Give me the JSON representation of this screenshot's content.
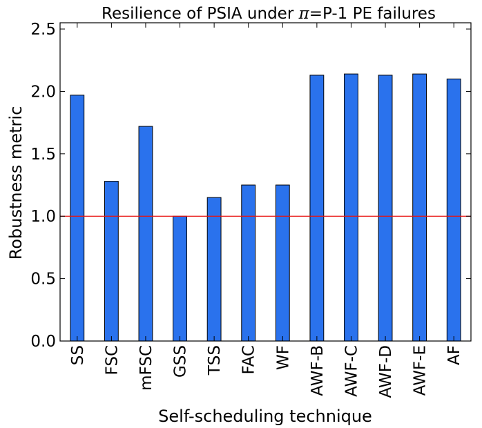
{
  "chart_data": {
    "type": "bar",
    "title_prefix": "Resilience of PSIA under ",
    "title_pi": "π",
    "title_suffix": "=P-1 PE failures",
    "xlabel": "Self-scheduling technique",
    "ylabel": "Robustness metric",
    "categories": [
      "SS",
      "FSC",
      "mFSC",
      "GSS",
      "TSS",
      "FAC",
      "WF",
      "AWF-B",
      "AWF-C",
      "AWF-D",
      "AWF-E",
      "AF"
    ],
    "values": [
      1.97,
      1.28,
      1.72,
      1.0,
      1.15,
      1.25,
      1.25,
      2.13,
      2.14,
      2.13,
      2.14,
      2.1
    ],
    "ylim": [
      0.0,
      2.55
    ],
    "yticks": [
      0.0,
      0.5,
      1.0,
      1.5,
      2.0,
      2.5
    ],
    "ytick_labels": [
      "0.0",
      "0.5",
      "1.0",
      "1.5",
      "2.0",
      "2.5"
    ],
    "reference_line": 1.0,
    "bar_color": "#2a72ed",
    "reference_line_color": "#e8120f",
    "grid": false,
    "legend": "none"
  }
}
